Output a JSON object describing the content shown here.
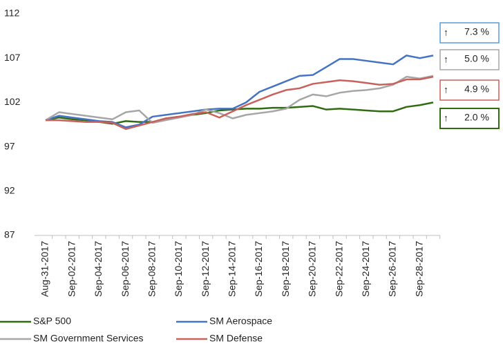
{
  "chart_data": {
    "type": "line",
    "categories": [
      "Aug-31-2017",
      null,
      "Sep-02-2017",
      null,
      "Sep-04-2017",
      null,
      "Sep-06-2017",
      null,
      "Sep-08-2017",
      null,
      "Sep-10-2017",
      null,
      "Sep-12-2017",
      null,
      "Sep-14-2017",
      null,
      "Sep-16-2017",
      null,
      "Sep-18-2017",
      null,
      "Sep-20-2017",
      null,
      "Sep-22-2017",
      null,
      "Sep-24-2017",
      null,
      "Sep-26-2017",
      null,
      "Sep-28-2017",
      null
    ],
    "series": [
      {
        "name": "S&P 500",
        "color": "#2f6b0f",
        "values": [
          100,
          100.3,
          100.1,
          100,
          99.8,
          99.6,
          99.9,
          99.8,
          99.8,
          100.2,
          100.4,
          100.6,
          100.8,
          101.1,
          101.2,
          101.3,
          101.3,
          101.4,
          101.4,
          101.5,
          101.6,
          101.2,
          101.3,
          101.2,
          101.1,
          101,
          101,
          101.5,
          101.7,
          102.0
        ]
      },
      {
        "name": "SM Aerospace",
        "color": "#4472c4",
        "values": [
          100,
          100.5,
          100.3,
          100.1,
          99.9,
          99.8,
          99.2,
          99.5,
          100.4,
          100.6,
          100.8,
          101,
          101.2,
          101.3,
          101.3,
          102,
          103.2,
          103.8,
          104.4,
          105,
          105.1,
          106,
          106.9,
          106.9,
          106.7,
          106.5,
          106.3,
          107.3,
          107.0,
          107.3
        ]
      },
      {
        "name": "SM Government Services",
        "color": "#a6a6a6",
        "values": [
          100,
          100.9,
          100.7,
          100.5,
          100.3,
          100.1,
          100.9,
          101.1,
          99.7,
          100,
          100.3,
          100.6,
          101.2,
          100.8,
          100.2,
          100.6,
          100.8,
          101,
          101.3,
          102.3,
          102.9,
          102.7,
          103.1,
          103.3,
          103.4,
          103.6,
          104,
          104.9,
          104.7,
          105.0
        ]
      },
      {
        "name": "SM Defense",
        "color": "#c9605c",
        "values": [
          100,
          100,
          99.9,
          99.8,
          99.8,
          99.7,
          99,
          99.4,
          99.8,
          100.2,
          100.4,
          100.7,
          100.9,
          100.3,
          101,
          101.7,
          102.3,
          102.9,
          103.4,
          103.6,
          104.1,
          104.3,
          104.5,
          104.4,
          104.2,
          104,
          104.1,
          104.6,
          104.6,
          104.9
        ]
      }
    ],
    "ylim": [
      87,
      112
    ],
    "yticks": [
      87,
      92,
      97,
      102,
      107,
      112
    ],
    "annotations": [
      {
        "arrow": "↑",
        "text": "7.3 %",
        "color": "#5b9bd5"
      },
      {
        "arrow": "↑",
        "text": "5.0 %",
        "color": "#a6a6a6"
      },
      {
        "arrow": "↑",
        "text": "4.9 %",
        "color": "#c9605c"
      },
      {
        "arrow": "↑",
        "text": "2.0 %",
        "color": "#2f6b0f"
      }
    ]
  }
}
